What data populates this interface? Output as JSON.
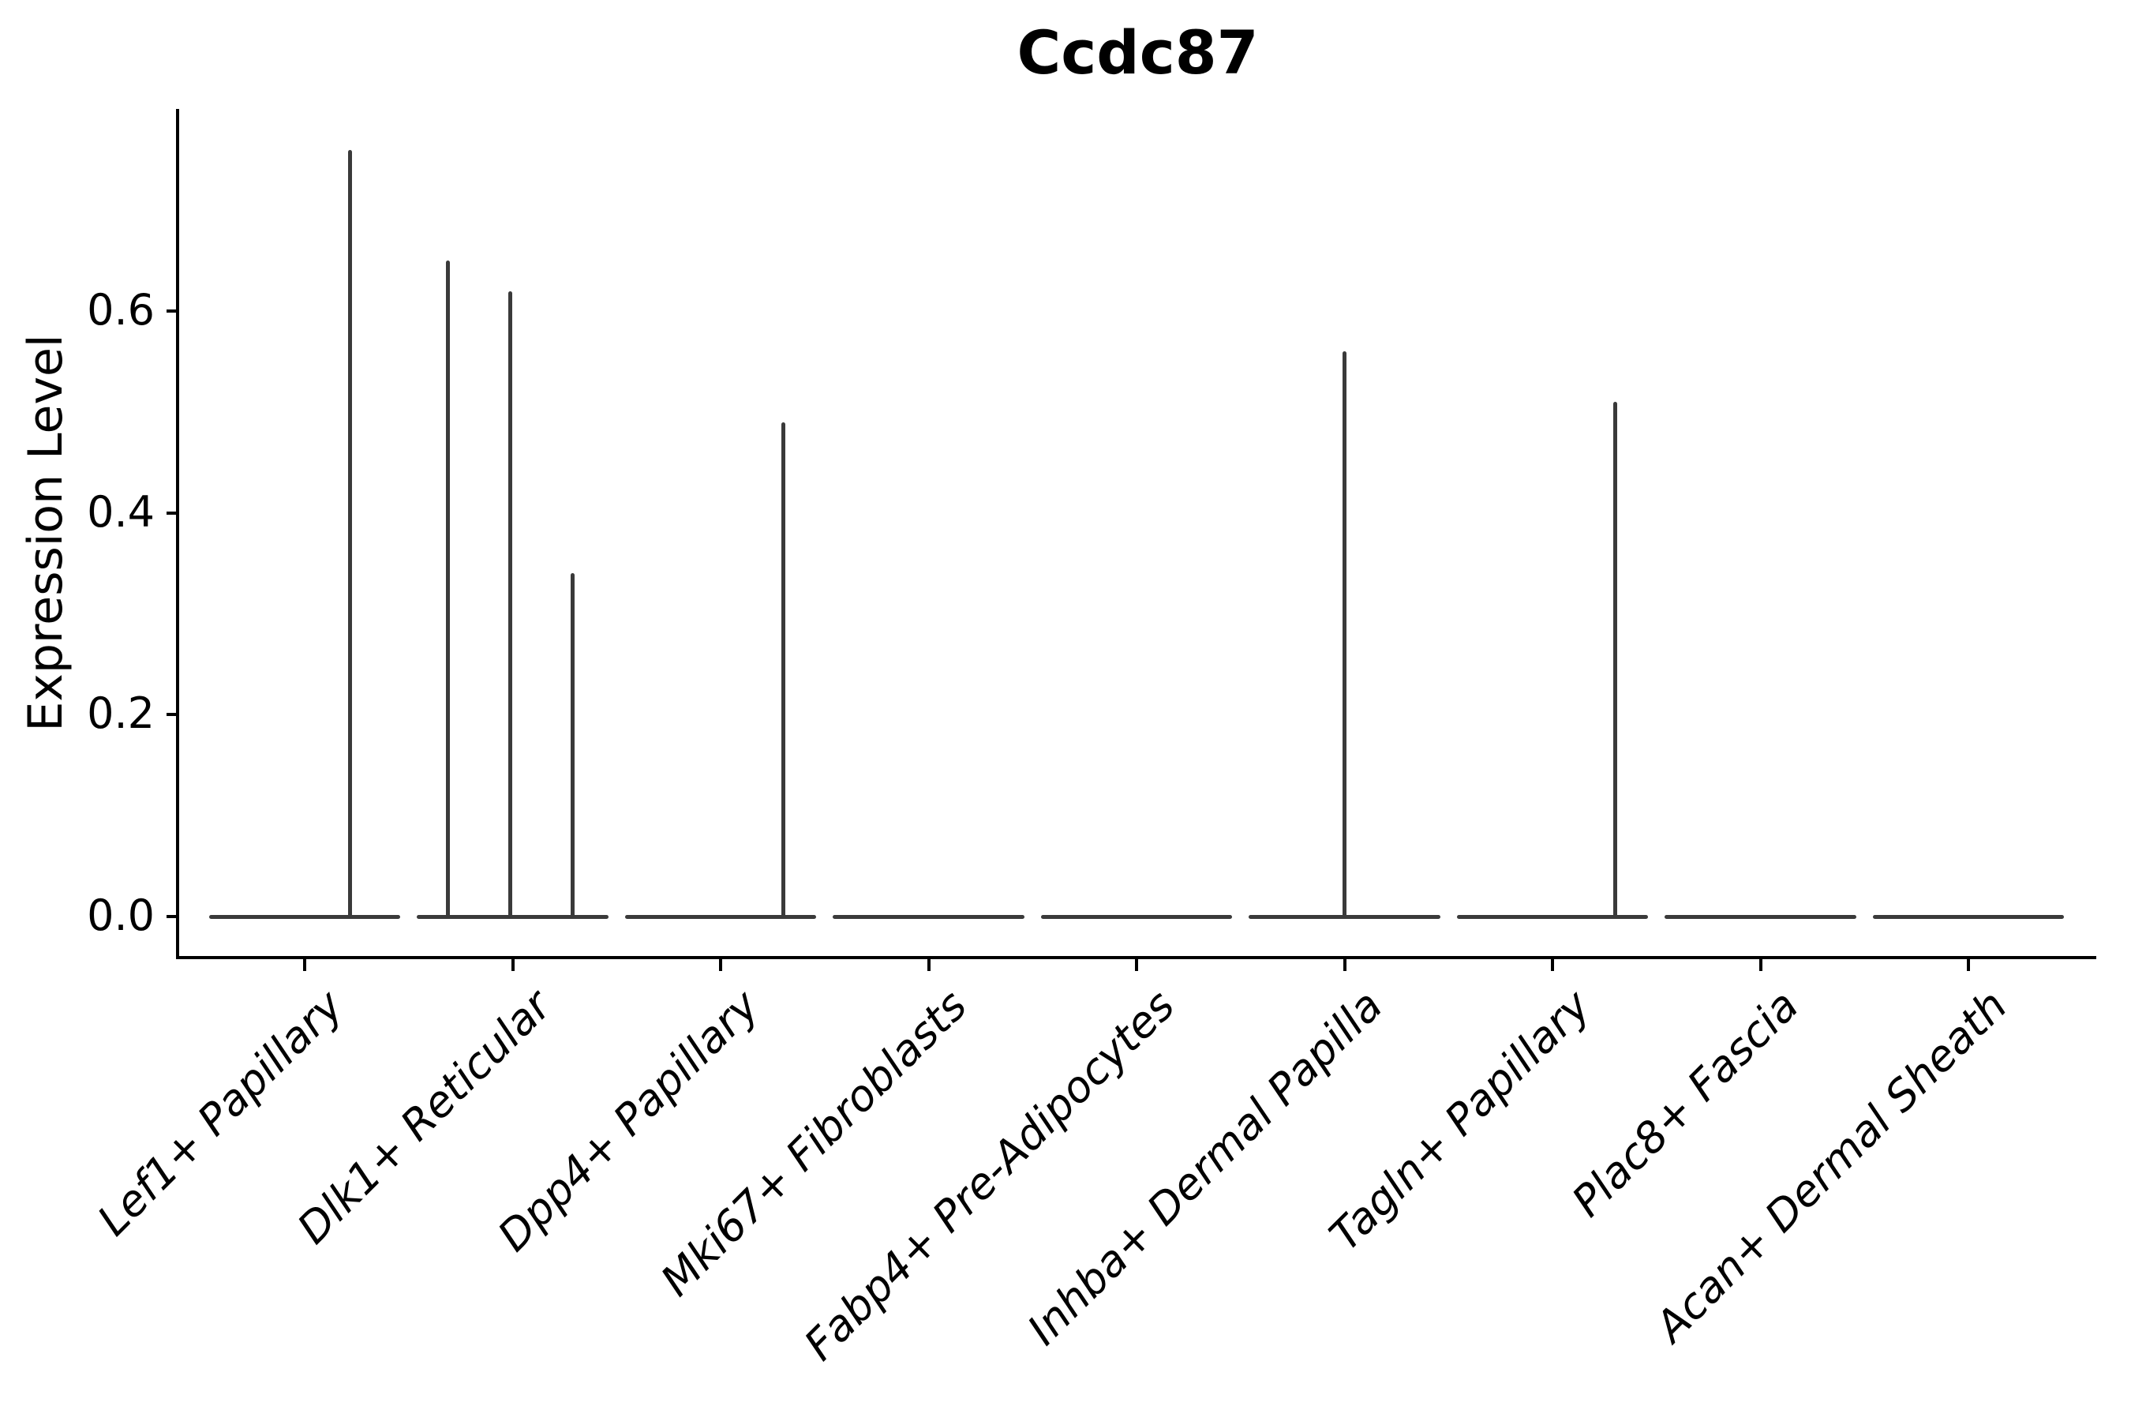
{
  "chart_data": {
    "type": "violin",
    "title": "Ccdc87",
    "ylabel": "Expression Level",
    "xlabel": "",
    "ylim": [
      0,
      0.8
    ],
    "grid": false,
    "legend": null,
    "yticks": [
      {
        "label": "0.0",
        "value": 0.0
      },
      {
        "label": "0.2",
        "value": 0.2
      },
      {
        "label": "0.4",
        "value": 0.4
      },
      {
        "label": "0.6",
        "value": 0.6
      }
    ],
    "categories": [
      "Lef1+ Papillary",
      "Dlk1+ Reticular",
      "Dpp4+ Papillary",
      "Mki67+ Fibroblasts",
      "Fabp4+ Pre-Adipocytes",
      "Inhba+ Dermal Papilla",
      "Tagln+ Papillary",
      "Plac8+ Fascia",
      "Acan+ Dermal Sheath"
    ],
    "series": [
      {
        "name": "Lef1+ Papillary",
        "baseline_halfwidth": 0.46,
        "spikes": [
          {
            "offset": 0.22,
            "value": 0.76
          }
        ]
      },
      {
        "name": "Dlk1+ Reticular",
        "baseline_halfwidth": 0.46,
        "spikes": [
          {
            "offset": -0.31,
            "value": 0.65
          },
          {
            "offset": -0.01,
            "value": 0.62
          },
          {
            "offset": 0.29,
            "value": 0.34
          }
        ]
      },
      {
        "name": "Dpp4+ Papillary",
        "baseline_halfwidth": 0.46,
        "spikes": [
          {
            "offset": 0.3,
            "value": 0.49
          }
        ]
      },
      {
        "name": "Mki67+ Fibroblasts",
        "baseline_halfwidth": 0.46,
        "spikes": []
      },
      {
        "name": "Fabp4+ Pre-Adipocytes",
        "baseline_halfwidth": 0.46,
        "spikes": []
      },
      {
        "name": "Inhba+ Dermal Papilla",
        "baseline_halfwidth": 0.46,
        "spikes": [
          {
            "offset": 0.0,
            "value": 0.56
          }
        ]
      },
      {
        "name": "Tagln+ Papillary",
        "baseline_halfwidth": 0.46,
        "spikes": [
          {
            "offset": 0.3,
            "value": 0.51
          }
        ]
      },
      {
        "name": "Plac8+ Fascia",
        "baseline_halfwidth": 0.46,
        "spikes": []
      },
      {
        "name": "Acan+ Dermal Sheath",
        "baseline_halfwidth": 0.46,
        "spikes": []
      }
    ],
    "colors": {
      "violin_stroke": "#3a3a3a",
      "axis": "#000000",
      "background": "#ffffff"
    }
  }
}
